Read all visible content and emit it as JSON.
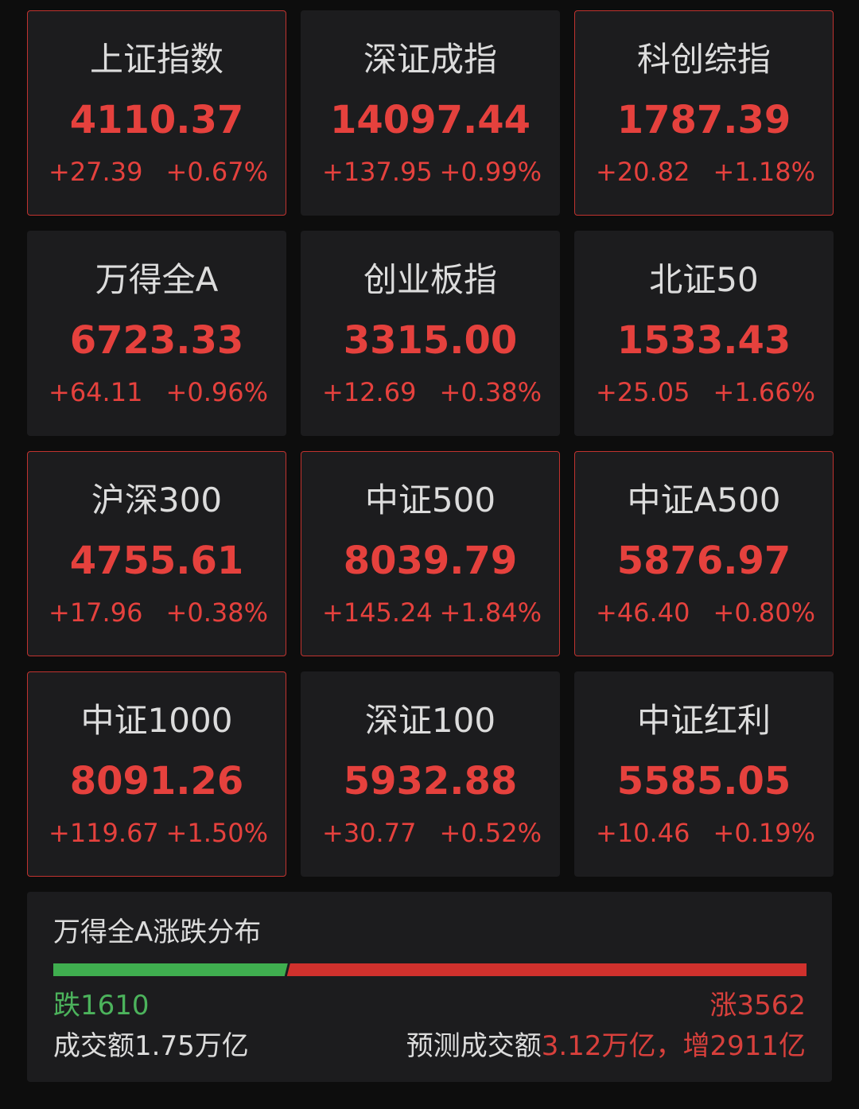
{
  "colors": {
    "up": "#e5413d",
    "down": "#4cb35c",
    "card_bg": "#1c1c1e",
    "page_bg": "#0d0d0d",
    "highlight_border": "#c0332f"
  },
  "indices": [
    {
      "name": "上证指数",
      "price": "4110.37",
      "change": "+27.39",
      "percent": "+0.67%",
      "highlighted": true
    },
    {
      "name": "深证成指",
      "price": "14097.44",
      "change": "+137.95",
      "percent": "+0.99%",
      "highlighted": false
    },
    {
      "name": "科创综指",
      "price": "1787.39",
      "change": "+20.82",
      "percent": "+1.18%",
      "highlighted": true
    },
    {
      "name": "万得全A",
      "price": "6723.33",
      "change": "+64.11",
      "percent": "+0.96%",
      "highlighted": false
    },
    {
      "name": "创业板指",
      "price": "3315.00",
      "change": "+12.69",
      "percent": "+0.38%",
      "highlighted": false
    },
    {
      "name": "北证50",
      "price": "1533.43",
      "change": "+25.05",
      "percent": "+1.66%",
      "highlighted": false
    },
    {
      "name": "沪深300",
      "price": "4755.61",
      "change": "+17.96",
      "percent": "+0.38%",
      "highlighted": true
    },
    {
      "name": "中证500",
      "price": "8039.79",
      "change": "+145.24",
      "percent": "+1.84%",
      "highlighted": true
    },
    {
      "name": "中证A500",
      "price": "5876.97",
      "change": "+46.40",
      "percent": "+0.80%",
      "highlighted": true
    },
    {
      "name": "中证1000",
      "price": "8091.26",
      "change": "+119.67",
      "percent": "+1.50%",
      "highlighted": true
    },
    {
      "name": "深证100",
      "price": "5932.88",
      "change": "+30.77",
      "percent": "+0.52%",
      "highlighted": false
    },
    {
      "name": "中证红利",
      "price": "5585.05",
      "change": "+10.46",
      "percent": "+0.19%",
      "highlighted": false
    }
  ],
  "breadth": {
    "title": "万得全A涨跌分布",
    "down_label": "跌1610",
    "down_count": 1610,
    "up_label": "涨3562",
    "up_count": 3562,
    "turnover": "成交额1.75万亿",
    "forecast_label": "预测成交额",
    "forecast_value": "3.12万亿，增2911亿"
  }
}
